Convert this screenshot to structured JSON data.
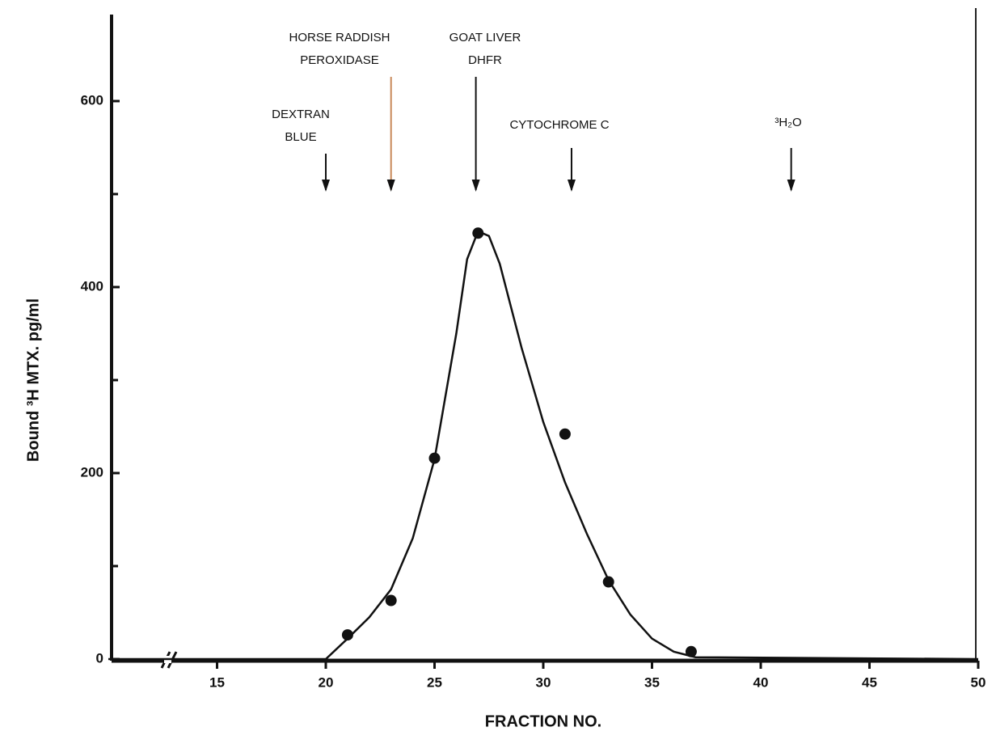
{
  "chart_data": {
    "type": "scatter",
    "x_label": "FRACTION NO.",
    "y_label": "Bound ³H MTX. pg/ml",
    "xlim": [
      10,
      50
    ],
    "ylim": [
      0,
      700
    ],
    "xticks": [
      15,
      20,
      25,
      30,
      35,
      40,
      45,
      50
    ],
    "yticks": [
      0,
      200,
      400,
      600
    ],
    "y_minor_ticks": [
      100,
      300,
      500
    ],
    "points": {
      "x": [
        21,
        23,
        25,
        27,
        31,
        33,
        36.8
      ],
      "values": [
        26,
        63,
        216,
        458,
        242,
        83,
        8
      ]
    },
    "curve": {
      "x": [
        10,
        20,
        21,
        22,
        23,
        24,
        25,
        26,
        26.5,
        27,
        27.5,
        28,
        29,
        30,
        31,
        32,
        33,
        34,
        35,
        36,
        37,
        50
      ],
      "values": [
        0,
        0,
        22,
        45,
        75,
        130,
        215,
        350,
        430,
        460,
        455,
        425,
        335,
        255,
        190,
        135,
        85,
        48,
        22,
        8,
        2,
        0
      ]
    },
    "annotations": [
      {
        "x": 20,
        "lines": [
          "DEXTRAN",
          "BLUE"
        ]
      },
      {
        "x": 23,
        "lines": [
          "HORSE RADDISH",
          "PEROXIDASE"
        ]
      },
      {
        "x": 26.9,
        "lines": [
          "GOAT LIVER",
          "DHFR"
        ]
      },
      {
        "x": 31.3,
        "lines": [
          "CYTOCHROME C"
        ]
      },
      {
        "x": 41.4,
        "lines": [
          "³H₂O"
        ]
      }
    ]
  }
}
